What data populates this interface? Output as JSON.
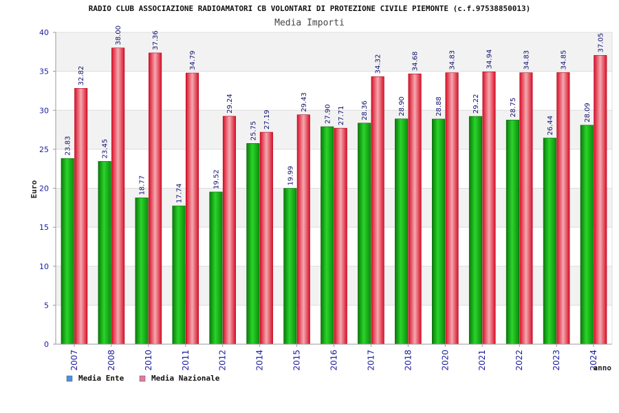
{
  "chart_data": {
    "type": "bar",
    "title": "RADIO CLUB ASSOCIAZIONE RADIOAMATORI CB VOLONTARI DI PROTEZIONE CIVILE PIEMONTE (c.f.97538850013)",
    "subtitle": "Media Importi",
    "xlabel": "anno",
    "ylabel": "Euro",
    "ylim": [
      0,
      40
    ],
    "yticks": [
      0,
      5,
      10,
      15,
      20,
      25,
      30,
      35,
      40
    ],
    "grid": true,
    "legend_position": "bottom-left",
    "categories": [
      "2007",
      "2008",
      "2010",
      "2011",
      "2012",
      "2014",
      "2015",
      "2016",
      "2017",
      "2018",
      "2020",
      "2021",
      "2022",
      "2023",
      "2024"
    ],
    "series": [
      {
        "name": "Media Ente",
        "color": "#1fb01f",
        "legend_color": "#4a90e2",
        "values": [
          23.83,
          23.45,
          18.77,
          17.74,
          19.52,
          25.75,
          19.99,
          27.9,
          28.36,
          28.9,
          28.88,
          29.22,
          28.75,
          26.44,
          28.09
        ],
        "labels": [
          "23.83",
          "23.45",
          "18.77",
          "17.74",
          "19.52",
          "25.75",
          "19.99",
          "27.90",
          "28.36",
          "28.90",
          "28.88",
          "29.22",
          "28.75",
          "26.44",
          "28.09"
        ]
      },
      {
        "name": "Media Nazionale",
        "color": "#e8293a",
        "legend_color": "#e07aa0",
        "values": [
          32.82,
          38.0,
          37.36,
          34.79,
          29.24,
          27.19,
          29.43,
          27.71,
          34.32,
          34.68,
          34.83,
          34.94,
          34.83,
          34.85,
          37.05
        ],
        "labels": [
          "32.82",
          "38.00",
          "37.36",
          "34.79",
          "29.24",
          "27.19",
          "29.43",
          "27.71",
          "34.32",
          "34.68",
          "34.83",
          "34.94",
          "34.83",
          "34.85",
          "37.05"
        ]
      }
    ]
  }
}
